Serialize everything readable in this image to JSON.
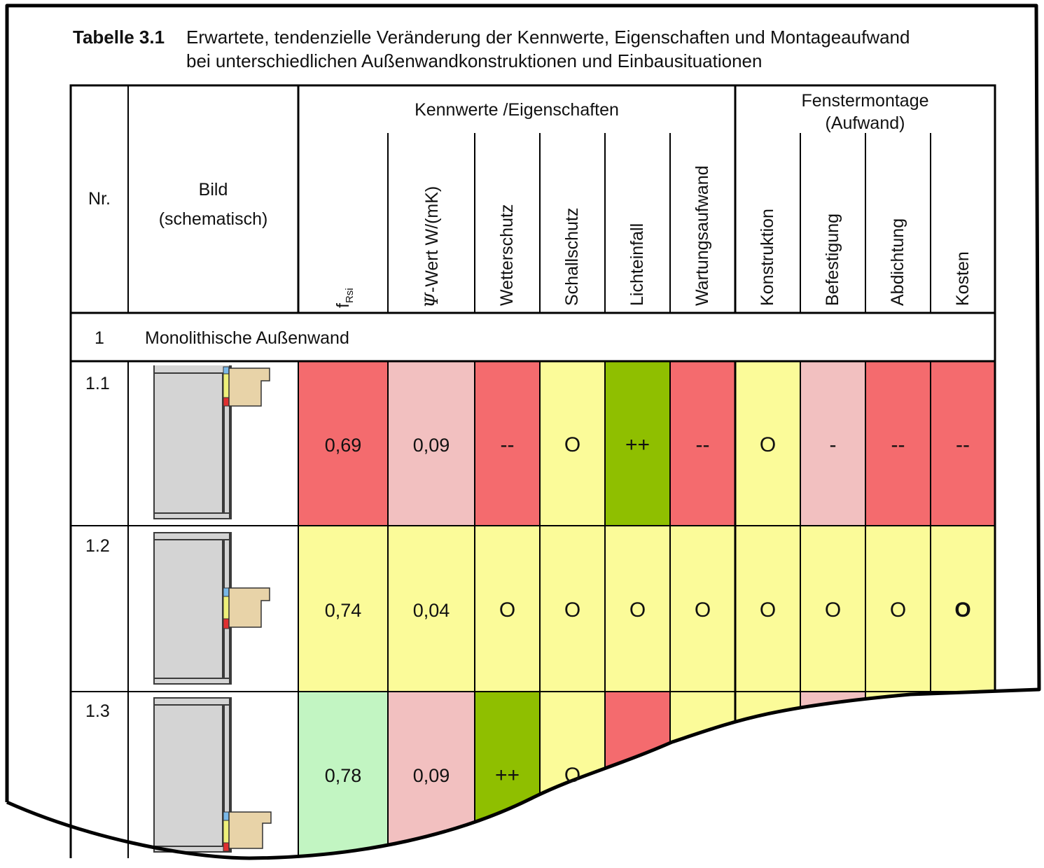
{
  "caption": {
    "label": "Tabelle 3.1",
    "line1": "Erwartete, tendenzielle Veränderung der Kennwerte, Eigenschaften und Montageaufwand",
    "line2": "bei unterschiedlichen Außenwandkonstruktionen und Einbausituationen"
  },
  "header": {
    "nr": "Nr.",
    "bild_line1": "Bild",
    "bild_line2": "(schematisch)",
    "group1": "Kennwerte /Eigenschaften",
    "group2_line1": "Fenstermontage",
    "group2_line2": "(Aufwand)",
    "frsi_main": "f",
    "frsi_sub": "Rsi",
    "psi_symbol": "Ψ",
    "psi_rest": "-Wert W/(mK)",
    "columns": [
      "Wetterschutz",
      "Schallschutz",
      "Lichteinfall",
      "Wartungsaufwand",
      "Konstruktion",
      "Befestigung",
      "Abdichtung",
      "Kosten"
    ]
  },
  "section": {
    "nr": "1",
    "title": "Monolithische Außenwand"
  },
  "rows": [
    {
      "nr": "1.1",
      "values": [
        "0,69",
        "0,09",
        "--",
        "O",
        "++",
        "--",
        "O",
        "-",
        "--",
        "--"
      ]
    },
    {
      "nr": "1.2",
      "values": [
        "0,74",
        "0,04",
        "O",
        "O",
        "O",
        "O",
        "O",
        "O",
        "O",
        "O"
      ]
    },
    {
      "nr": "1.3",
      "values": [
        "0,78",
        "0,09",
        "++",
        "O",
        "",
        "",
        "",
        "",
        "",
        ""
      ]
    }
  ],
  "colors": {
    "red": "#f46b6e",
    "pink": "#f2c0c0",
    "yellow": "#fbfb99",
    "green": "#8fbf00",
    "lightgreen": "#c2f5c2",
    "wall": "#d4d4d4",
    "frame": "#e8d3a8"
  }
}
